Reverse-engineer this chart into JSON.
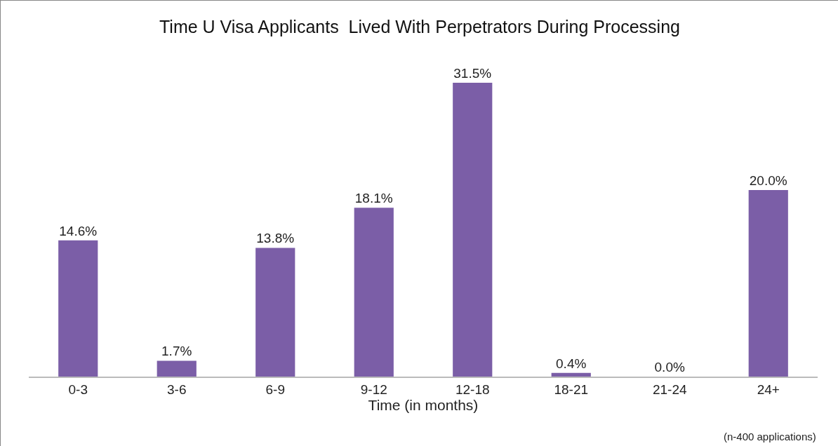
{
  "chart_data": {
    "type": "bar",
    "title": "Time U Visa Applicants  Lived With Perpetrators During Processing",
    "xlabel": "Time (in months)",
    "categories": [
      "0-3",
      "3-6",
      "6-9",
      "9-12",
      "12-18",
      "18-21",
      "21-24",
      "24+"
    ],
    "values": [
      14.6,
      1.7,
      13.8,
      18.1,
      31.5,
      0.4,
      0.0,
      20.0
    ],
    "value_labels": [
      "14.6%",
      "1.7%",
      "13.8%",
      "18.1%",
      "31.5%",
      "0.4%",
      "0.0%",
      "20.0%"
    ],
    "color": "#7b5ea7",
    "grid": false,
    "legend": false,
    "annotations": [
      "(n-400 applications)"
    ]
  }
}
